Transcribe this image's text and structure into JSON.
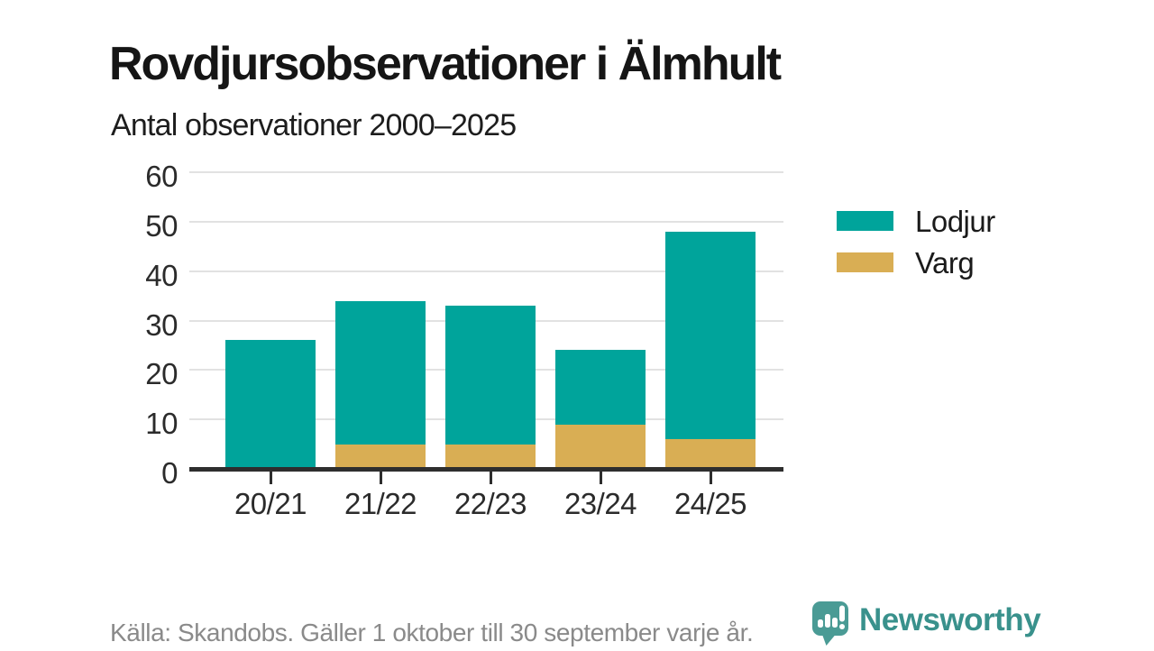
{
  "header": {
    "title": "Rovdjursobservationer i Älmhult",
    "subtitle": "Antal observationer 2000–2025"
  },
  "chart_data": {
    "type": "bar",
    "stacked": true,
    "title": "Rovdjursobservationer i Älmhult",
    "subtitle": "Antal observationer 2000–2025",
    "categories": [
      "20/21",
      "21/22",
      "22/23",
      "23/24",
      "24/25"
    ],
    "series": [
      {
        "name": "Varg",
        "color": "#D9AE54",
        "values": [
          0,
          5,
          5,
          9,
          6
        ]
      },
      {
        "name": "Lodjur",
        "color": "#00A49B",
        "values": [
          26,
          29,
          28,
          15,
          42
        ]
      }
    ],
    "stack_totals": [
      26,
      34,
      33,
      24,
      48
    ],
    "xlabel": "",
    "ylabel": "",
    "ylim": [
      0,
      60
    ],
    "yticks": [
      0,
      10,
      20,
      30,
      40,
      50,
      60
    ],
    "grid": true,
    "legend_position": "right",
    "legend_order": [
      "Lodjur",
      "Varg"
    ]
  },
  "colors": {
    "bar_teal": "#00A49B",
    "bar_gold": "#D9AE54",
    "axis": "#2E2E2E",
    "gridline": "#E2E2E2",
    "brand_teal": "#39918C",
    "logo_bubble": "#4A9B95",
    "footer_gray": "#8A8A8A"
  },
  "footer": {
    "source": "Källa: Skandobs. Gäller 1 oktober till 30 september varje år.",
    "brand": "Newsworthy"
  }
}
